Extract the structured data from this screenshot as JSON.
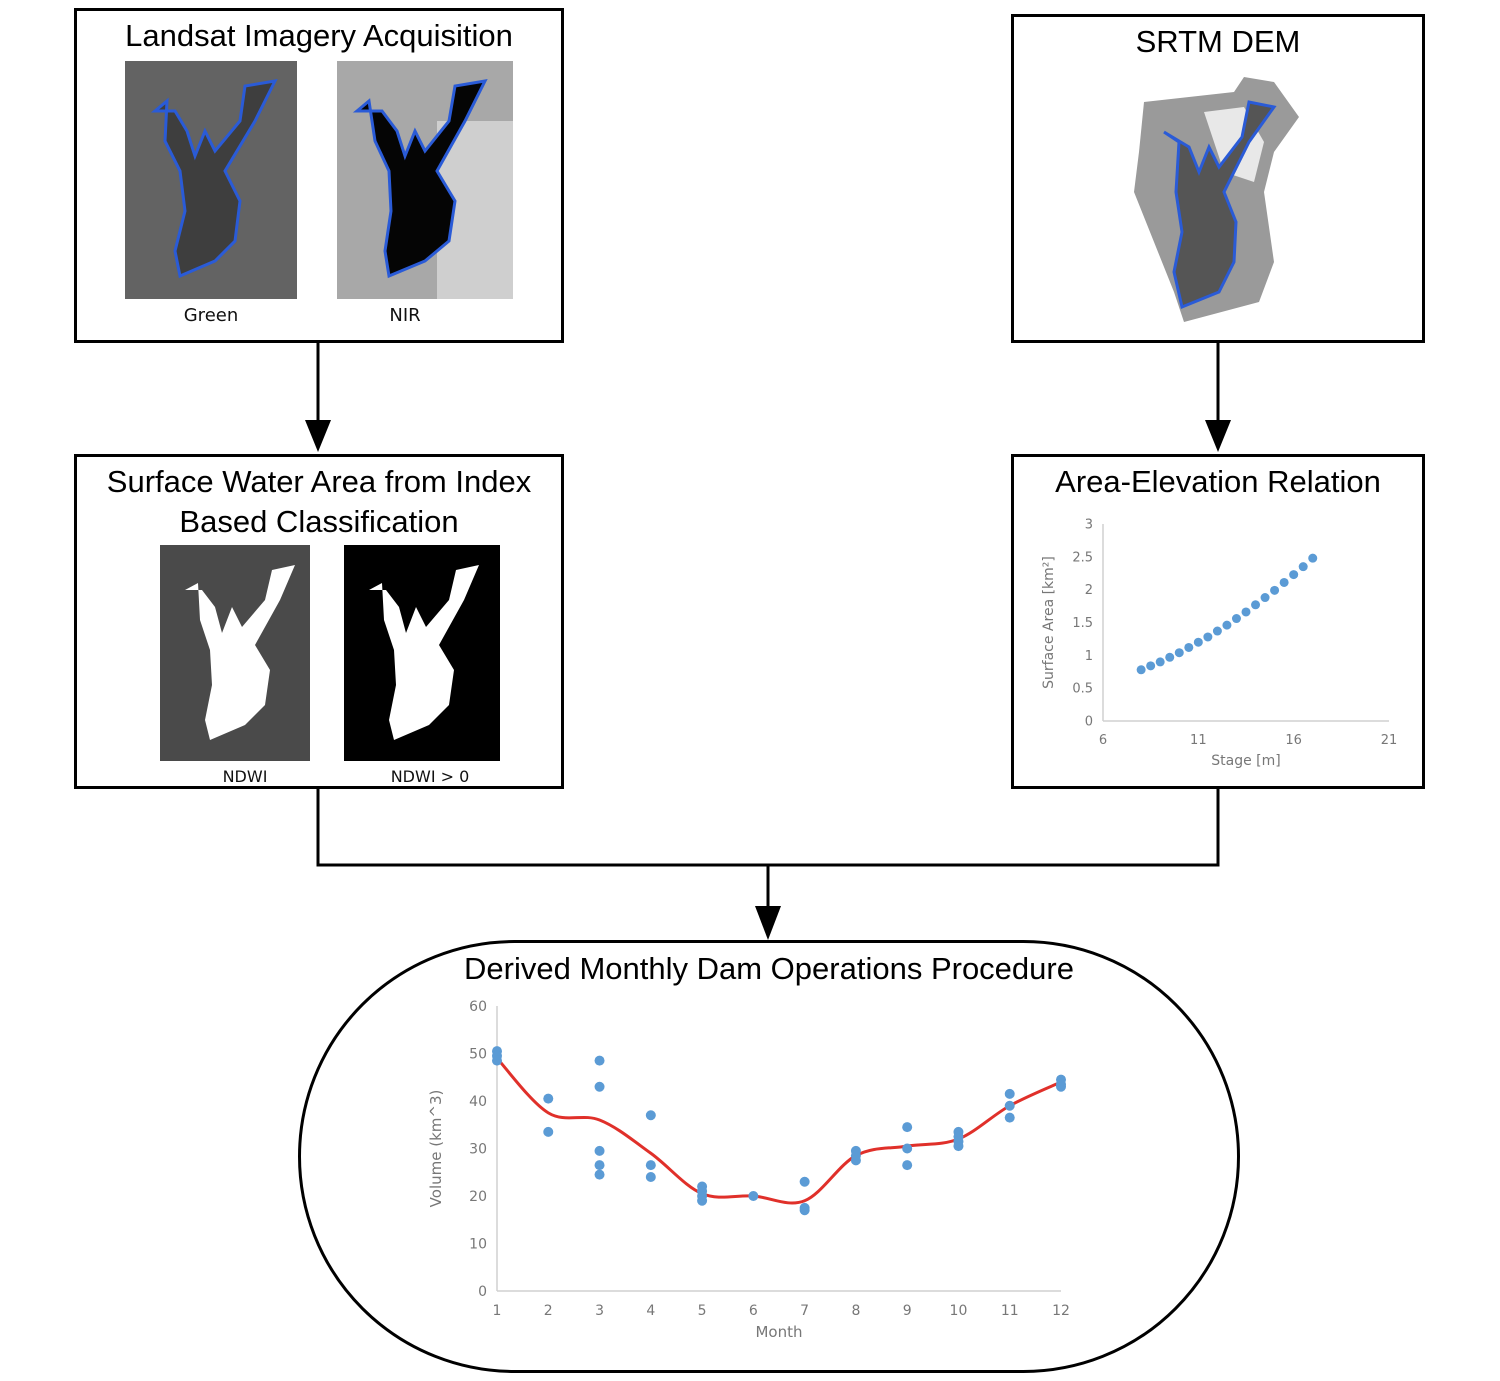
{
  "colors": {
    "water_outline": "#2a5bd7",
    "marker": "#5b9bd5",
    "fit_line": "#e0302a"
  },
  "boxes": {
    "landsat": {
      "title": "Landsat Imagery Acquisition",
      "captions": [
        "Green",
        "NIR"
      ]
    },
    "srtm": {
      "title": "SRTM DEM"
    },
    "surface_water": {
      "title_line1": "Surface Water Area from Index",
      "title_line2": "Based Classification",
      "captions": [
        "NDWI",
        "NDWI > 0"
      ]
    },
    "area_elevation": {
      "title": "Area-Elevation Relation"
    },
    "dam_ops": {
      "title": "Derived Monthly Dam Operations Procedure"
    }
  },
  "chart_data": [
    {
      "type": "scatter",
      "xlabel": "Stage [m]",
      "ylabel": "Surface Area [km²]",
      "x_ticks": [
        "6",
        "11",
        "16",
        "21"
      ],
      "y_ticks": [
        "0",
        "0.5",
        "1",
        "1.5",
        "2",
        "2.5",
        "3"
      ],
      "xlim": [
        6,
        21
      ],
      "ylim": [
        0,
        3
      ],
      "points": [
        [
          8.0,
          0.78
        ],
        [
          8.5,
          0.84
        ],
        [
          9.0,
          0.9
        ],
        [
          9.5,
          0.97
        ],
        [
          10.0,
          1.04
        ],
        [
          10.5,
          1.12
        ],
        [
          11.0,
          1.2
        ],
        [
          11.5,
          1.28
        ],
        [
          12.0,
          1.37
        ],
        [
          12.5,
          1.46
        ],
        [
          13.0,
          1.56
        ],
        [
          13.5,
          1.66
        ],
        [
          14.0,
          1.77
        ],
        [
          14.5,
          1.88
        ],
        [
          15.0,
          1.99
        ],
        [
          15.5,
          2.11
        ],
        [
          16.0,
          2.23
        ],
        [
          16.5,
          2.35
        ],
        [
          17.0,
          2.48
        ]
      ]
    },
    {
      "type": "scatter",
      "xlabel": "Month",
      "ylabel": "Volume (km^3)",
      "x_ticks": [
        "1",
        "2",
        "3",
        "4",
        "5",
        "6",
        "7",
        "8",
        "9",
        "10",
        "11",
        "12"
      ],
      "y_ticks": [
        "0",
        "10",
        "20",
        "30",
        "40",
        "50",
        "60"
      ],
      "xlim": [
        1,
        12
      ],
      "ylim": [
        0,
        60
      ],
      "points": [
        [
          1,
          50.5
        ],
        [
          1,
          49.5
        ],
        [
          1,
          48.5
        ],
        [
          2,
          40.5
        ],
        [
          2,
          33.5
        ],
        [
          3,
          48.5
        ],
        [
          3,
          43
        ],
        [
          3,
          29.5
        ],
        [
          3,
          26.5
        ],
        [
          3,
          24.5
        ],
        [
          4,
          37
        ],
        [
          4,
          26.5
        ],
        [
          4,
          24
        ],
        [
          5,
          22
        ],
        [
          5,
          21
        ],
        [
          5,
          20
        ],
        [
          5,
          19
        ],
        [
          6,
          20
        ],
        [
          7,
          23
        ],
        [
          7,
          17.5
        ],
        [
          7,
          17
        ],
        [
          8,
          29.5
        ],
        [
          8,
          28.5
        ],
        [
          8,
          27.5
        ],
        [
          9,
          34.5
        ],
        [
          9,
          30
        ],
        [
          9,
          26.5
        ],
        [
          10,
          33.5
        ],
        [
          10,
          32.5
        ],
        [
          10,
          31.5
        ],
        [
          10,
          30.5
        ],
        [
          11,
          41.5
        ],
        [
          11,
          39
        ],
        [
          11,
          36.5
        ],
        [
          12,
          44.5
        ],
        [
          12,
          43.5
        ],
        [
          12,
          43
        ]
      ],
      "fit_line": [
        [
          1,
          49
        ],
        [
          2,
          37.5
        ],
        [
          3,
          36
        ],
        [
          4,
          29
        ],
        [
          5,
          20.5
        ],
        [
          6,
          20
        ],
        [
          7,
          19
        ],
        [
          8,
          28.5
        ],
        [
          9,
          30.5
        ],
        [
          10,
          32
        ],
        [
          11,
          39
        ],
        [
          12,
          44
        ]
      ]
    }
  ]
}
